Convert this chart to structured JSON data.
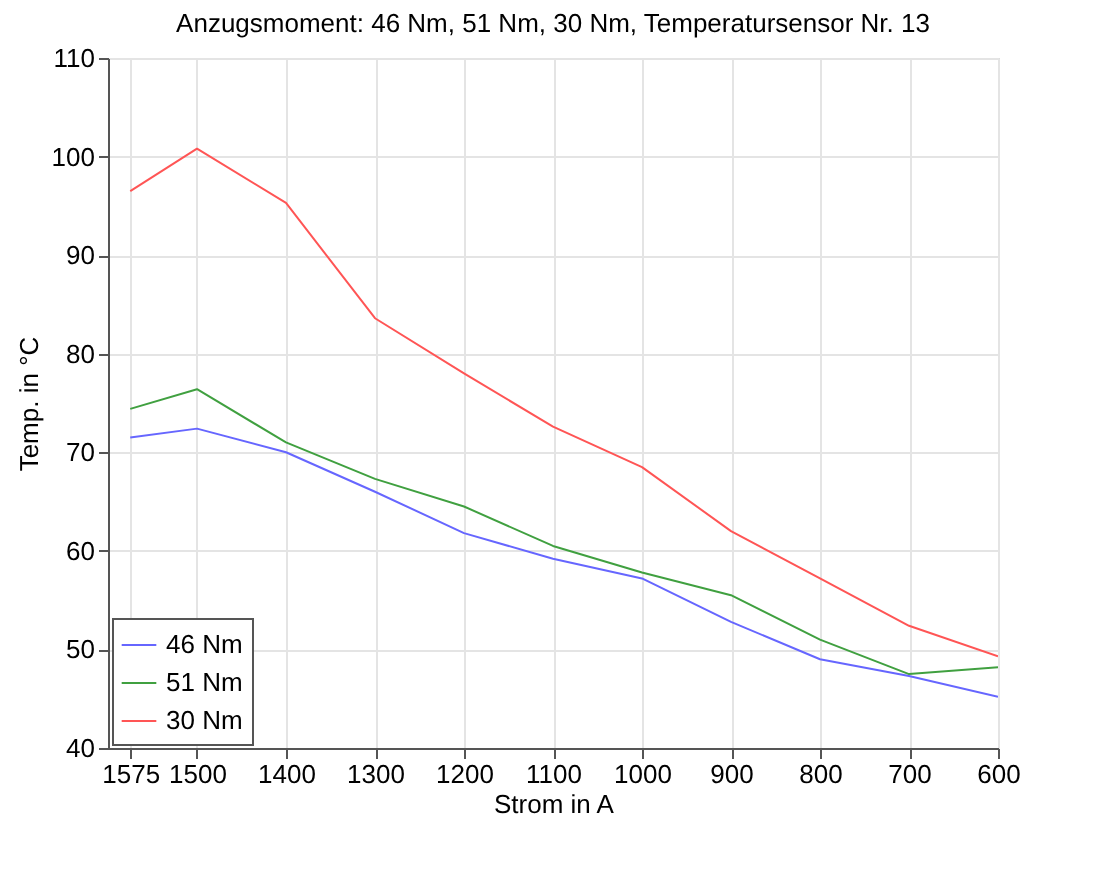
{
  "chart_data": {
    "type": "line",
    "title": "Anzugsmoment: 46 Nm, 51 Nm, 30 Nm, Temperatursensor Nr. 13",
    "xlabel": "Strom in A",
    "ylabel": "Temp. in °C",
    "x": [
      1575,
      1500,
      1400,
      1300,
      1200,
      1100,
      1000,
      900,
      800,
      700,
      600
    ],
    "series": [
      {
        "name": "46 Nm",
        "color": "#6666ff",
        "values": [
          71.5,
          72.4,
          70,
          66,
          61.8,
          59.2,
          57.2,
          52.8,
          49,
          47.3,
          45.2
        ]
      },
      {
        "name": "51 Nm",
        "color": "#40a040",
        "values": [
          74.4,
          76.4,
          71,
          67.3,
          64.5,
          60.5,
          57.8,
          55.5,
          51,
          47.5,
          48.2
        ]
      },
      {
        "name": "30 Nm",
        "color": "#ff5555",
        "values": [
          96.5,
          100.8,
          95.3,
          83.6,
          78,
          72.6,
          68.5,
          62,
          57.2,
          52.4,
          49.3
        ]
      }
    ],
    "xlim": [
      1600,
      600
    ],
    "xticks": [
      1575,
      1500,
      1400,
      1300,
      1200,
      1100,
      1000,
      900,
      800,
      700,
      600
    ],
    "ylim": [
      40,
      110
    ],
    "yticks": [
      40,
      50,
      60,
      70,
      80,
      90,
      100,
      110
    ],
    "grid": true,
    "legend": "bottom left",
    "marker": "none",
    "line_style": "solid"
  }
}
